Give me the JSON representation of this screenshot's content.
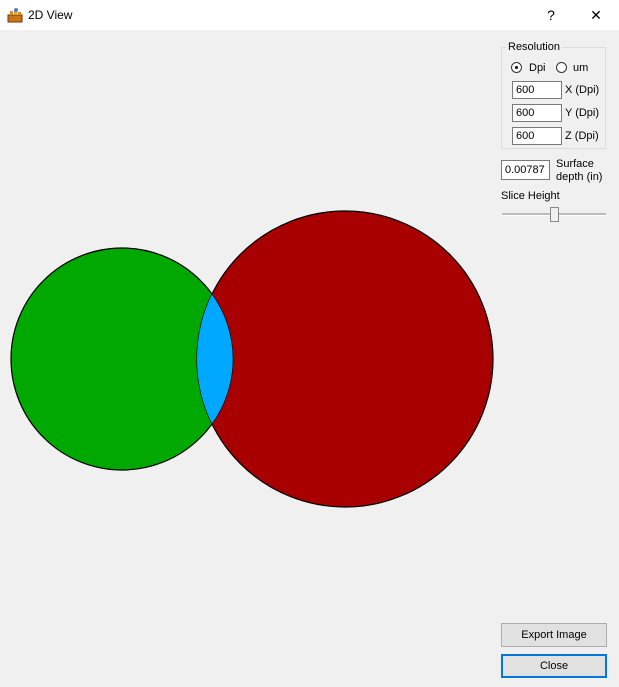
{
  "window": {
    "title": "2D View",
    "help_glyph": "?",
    "close_glyph": "✕"
  },
  "resolution": {
    "group_label": "Resolution",
    "unit_options": [
      {
        "label": "Dpi",
        "checked": true
      },
      {
        "label": "um",
        "checked": false
      }
    ],
    "fields": [
      {
        "value": "600",
        "label": "X (Dpi)"
      },
      {
        "value": "600",
        "label": "Y (Dpi)"
      },
      {
        "value": "600",
        "label": "Z (Dpi)"
      }
    ]
  },
  "surface_depth": {
    "value": "0.00787",
    "label_line1": "Surface",
    "label_line2": "depth (in)"
  },
  "slice_height": {
    "label": "Slice Height",
    "level": 0.5
  },
  "buttons": {
    "export_label": "Export Image",
    "close_label": "Close"
  },
  "colors": {
    "green_circle": "#00a800",
    "red_circle": "#a80000",
    "overlap": "#00a8ff",
    "outline": "#000000"
  }
}
